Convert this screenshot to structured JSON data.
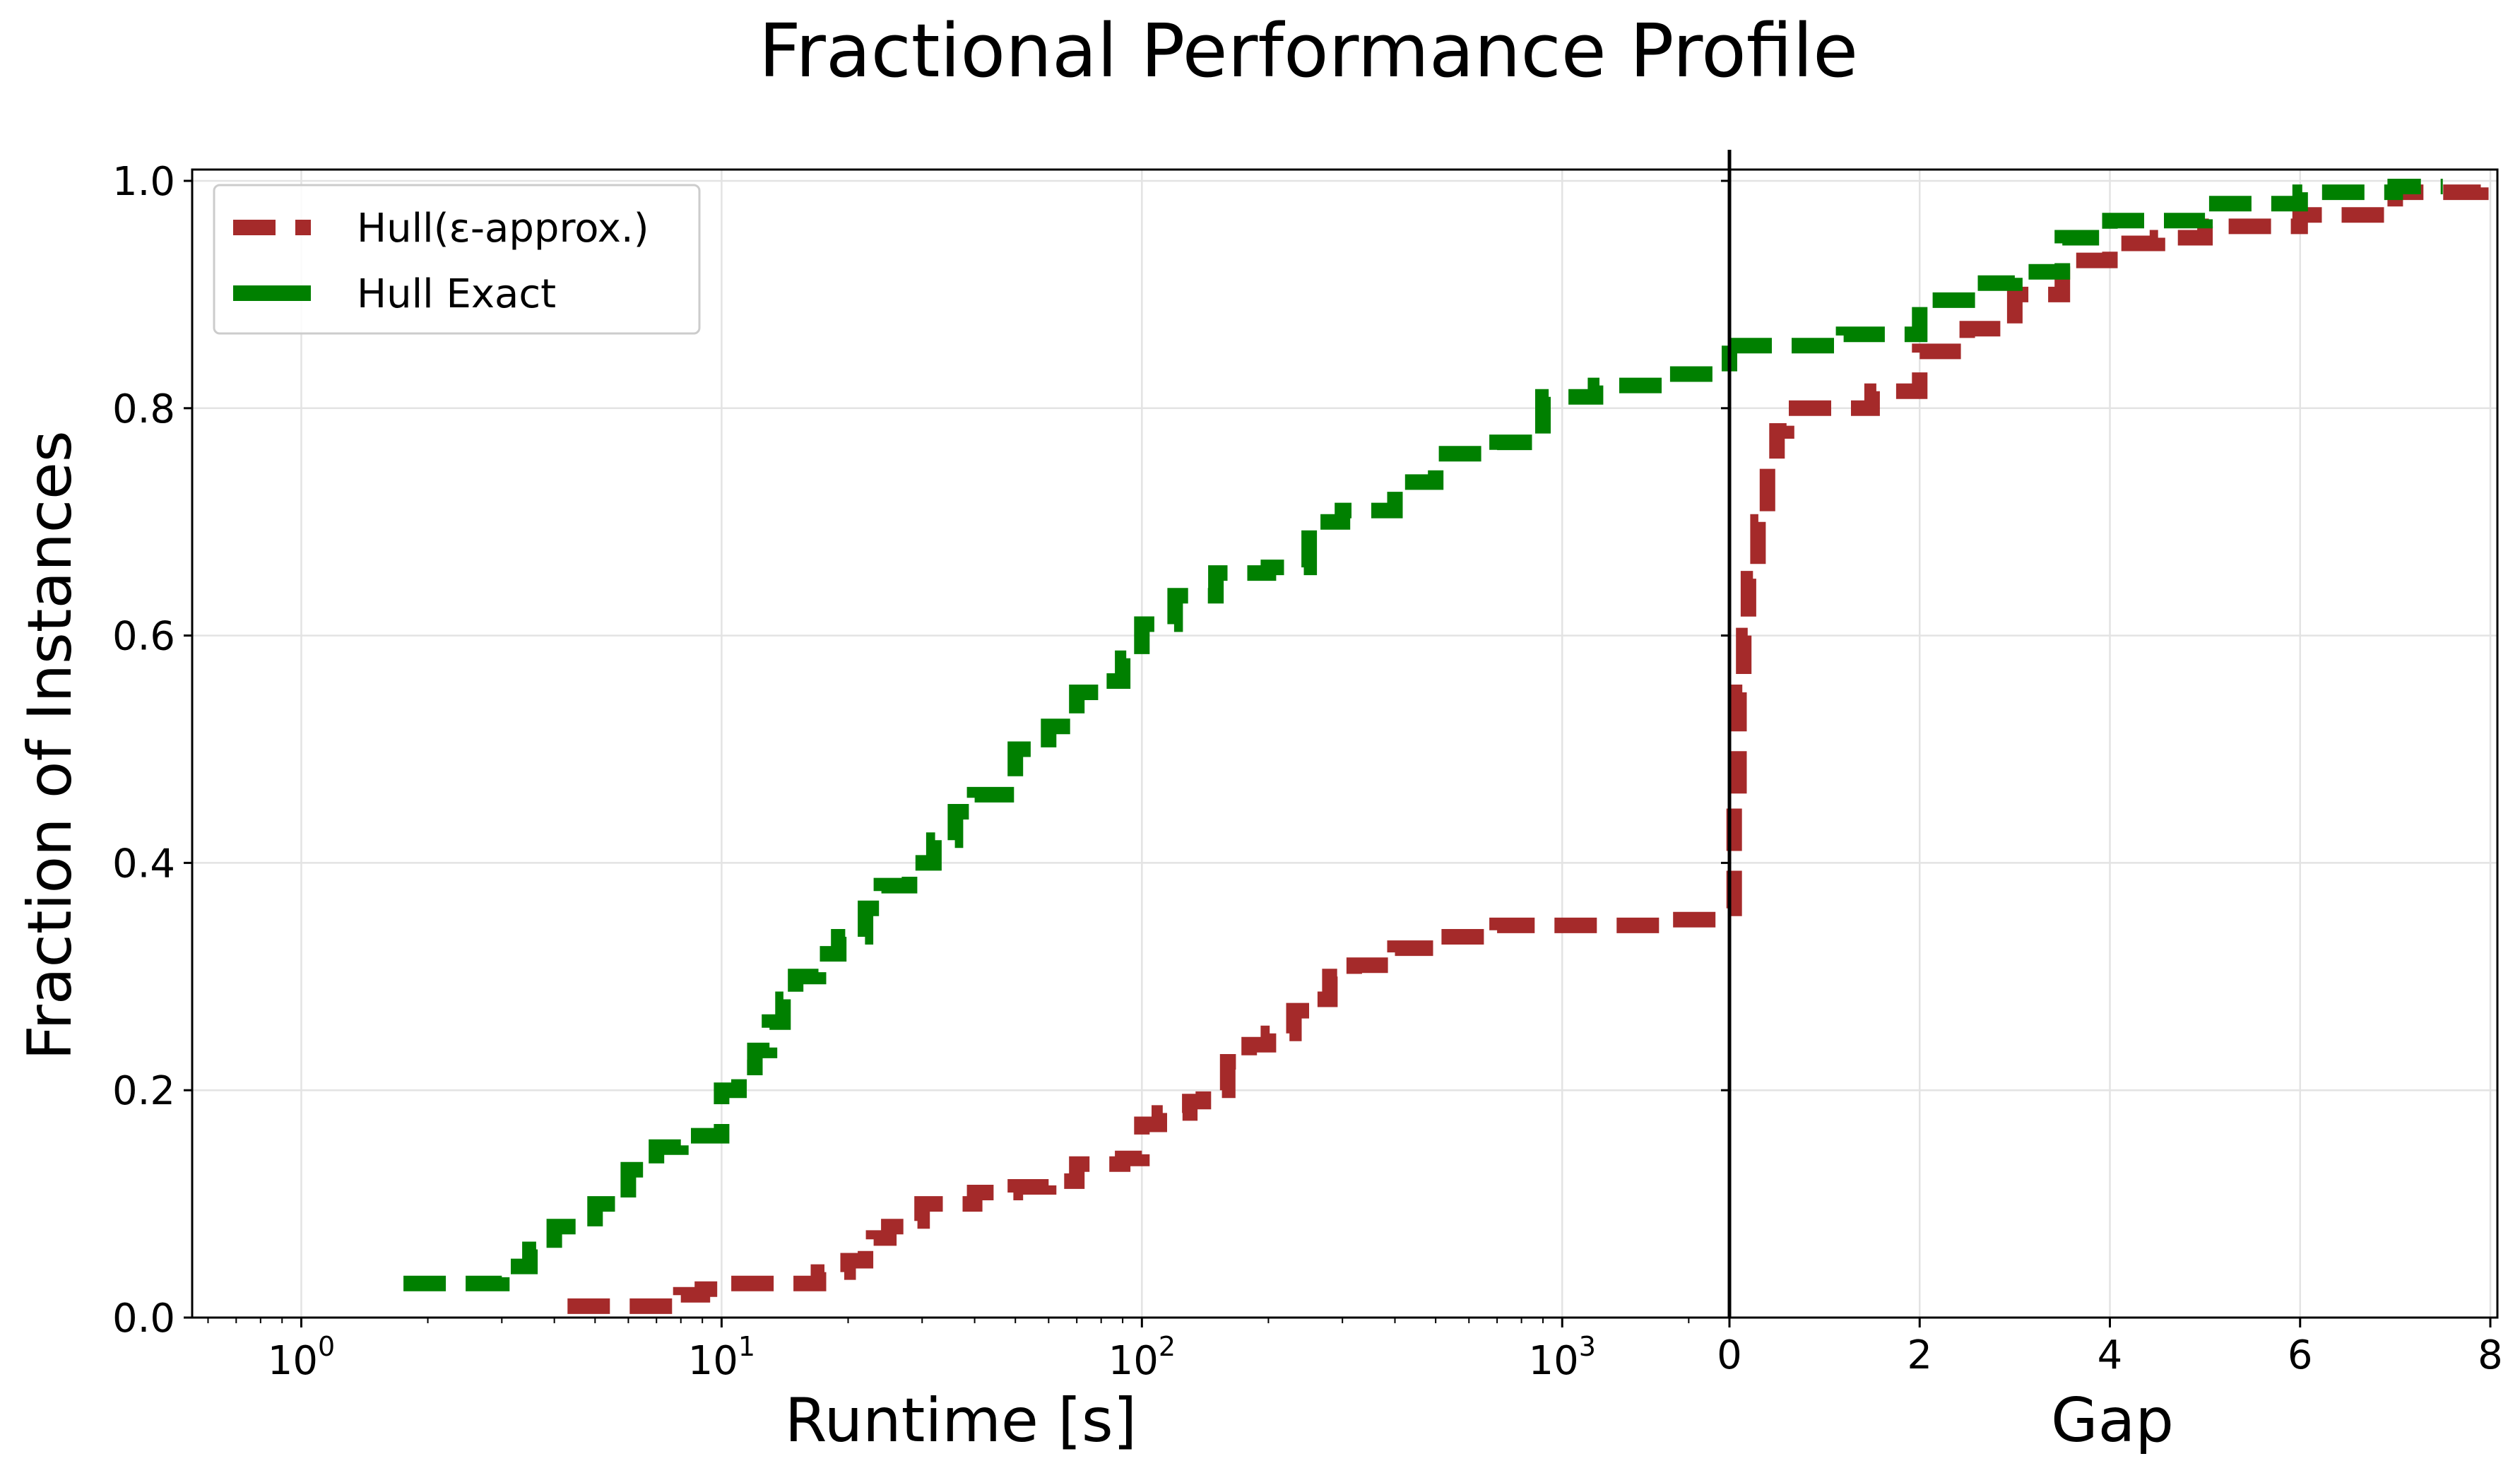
{
  "chart_data": {
    "type": "line",
    "title": "Fractional Performance Profile",
    "ylabel": "Fraction of Instances",
    "ylim": [
      0,
      1.0
    ],
    "yticks": [
      "0.0",
      "0.2",
      "0.4",
      "0.6",
      "0.8",
      "1.0"
    ],
    "legend_position": "top-left",
    "grid": true,
    "panels": [
      {
        "name": "runtime",
        "xlabel": "Runtime [s]",
        "xscale": "log",
        "xlim": [
          0.55,
          2500
        ],
        "xticks": [
          {
            "value": 1,
            "base": "10",
            "exp": "0"
          },
          {
            "value": 10,
            "base": "10",
            "exp": "1"
          },
          {
            "value": 100,
            "base": "10",
            "exp": "2"
          },
          {
            "value": 1000,
            "base": "10",
            "exp": "3"
          }
        ]
      },
      {
        "name": "gap",
        "xlabel": "Gap",
        "xscale": "linear",
        "xlim": [
          0,
          8
        ],
        "xticks": [
          "0",
          "2",
          "4",
          "6",
          "8"
        ]
      }
    ],
    "series": [
      {
        "name": "Hull(ε-approx.)",
        "color": "#a52a2a",
        "runtime": {
          "x": [
            4.3,
            7.5,
            8,
            9,
            10,
            12,
            16,
            17,
            18,
            20,
            22,
            23,
            25,
            28,
            30,
            35,
            40,
            50,
            60,
            70,
            90,
            100,
            110,
            130,
            140,
            160,
            180,
            200,
            230,
            250,
            280,
            320,
            400,
            500,
            700,
            1000,
            1800,
            2500
          ],
          "y": [
            0.01,
            0.01,
            0.02,
            0.025,
            0.03,
            0.03,
            0.03,
            0.04,
            0.04,
            0.05,
            0.06,
            0.07,
            0.08,
            0.085,
            0.1,
            0.1,
            0.11,
            0.115,
            0.12,
            0.135,
            0.14,
            0.17,
            0.18,
            0.19,
            0.2,
            0.225,
            0.24,
            0.25,
            0.27,
            0.28,
            0.3,
            0.31,
            0.325,
            0.335,
            0.345,
            0.345,
            0.35,
            0.35
          ]
        },
        "gap": {
          "x": [
            0,
            0.05,
            0.1,
            0.15,
            0.2,
            0.3,
            0.4,
            0.5,
            0.6,
            1.0,
            1.5,
            2.0,
            2.5,
            3.0,
            3.5,
            4.0,
            4.5,
            5.0,
            6.0,
            7.0,
            7.9
          ],
          "y": [
            0.36,
            0.45,
            0.55,
            0.6,
            0.65,
            0.7,
            0.75,
            0.78,
            0.8,
            0.8,
            0.815,
            0.85,
            0.87,
            0.9,
            0.93,
            0.945,
            0.95,
            0.96,
            0.97,
            0.99,
            0.995
          ]
        }
      },
      {
        "name": "Hull Exact",
        "color": "#008000",
        "runtime": {
          "x": [
            1.75,
            2.5,
            3,
            3.5,
            4,
            5,
            6,
            7,
            8,
            10,
            11,
            12,
            13,
            14,
            15,
            17,
            19,
            22,
            24,
            28,
            32,
            36,
            40,
            50,
            60,
            70,
            80,
            90,
            100,
            120,
            150,
            200,
            250,
            300,
            400,
            500,
            700,
            900,
            1200,
            1800,
            2500
          ],
          "y": [
            0.03,
            0.03,
            0.045,
            0.06,
            0.08,
            0.1,
            0.13,
            0.15,
            0.16,
            0.2,
            0.22,
            0.235,
            0.26,
            0.28,
            0.3,
            0.32,
            0.335,
            0.36,
            0.38,
            0.4,
            0.42,
            0.445,
            0.46,
            0.5,
            0.52,
            0.55,
            0.56,
            0.58,
            0.61,
            0.635,
            0.655,
            0.66,
            0.7,
            0.71,
            0.735,
            0.76,
            0.77,
            0.81,
            0.82,
            0.83,
            0.855
          ]
        },
        "gap": {
          "x": [
            0,
            0.8,
            1.2,
            2.0,
            2.5,
            3.0,
            3.5,
            4.0,
            5.0,
            6.0,
            7.0,
            7.5
          ],
          "y": [
            0.855,
            0.855,
            0.865,
            0.895,
            0.91,
            0.92,
            0.95,
            0.965,
            0.98,
            0.99,
            0.995,
            0.995
          ]
        }
      }
    ]
  }
}
